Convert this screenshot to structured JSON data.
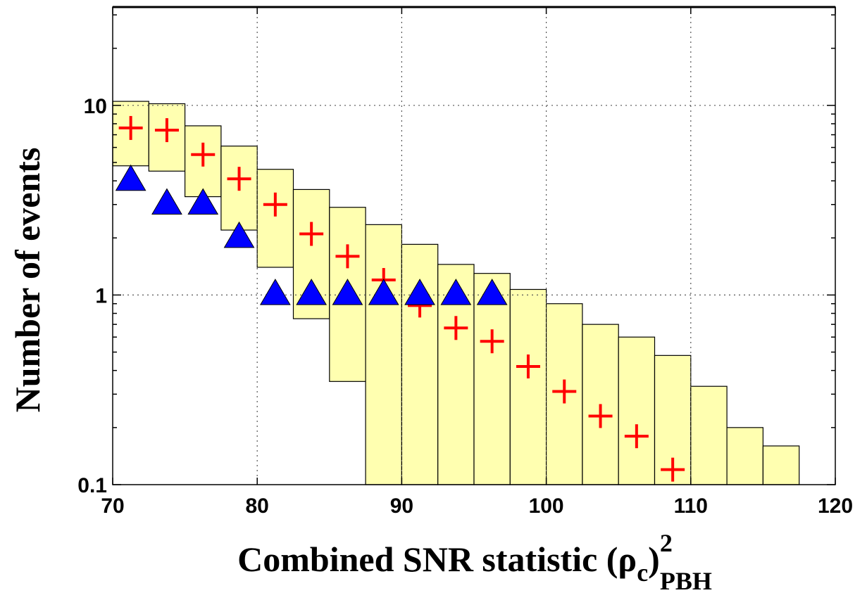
{
  "chart_data": {
    "type": "bar",
    "scale_y": "log",
    "xlim": [
      70,
      120
    ],
    "ylim": [
      0.1,
      33
    ],
    "grid": true,
    "legend": "none",
    "xlabel": {
      "text": "Combined SNR statistic (ρ",
      "sub_c": "c",
      "close_paren": ")",
      "sup": "2",
      "sub": "PBH"
    },
    "ylabel": "Number of events",
    "x_ticks": [
      70,
      80,
      90,
      100,
      110,
      120
    ],
    "x_tick_labels": [
      "70",
      "80",
      "90",
      "100",
      "110",
      "120"
    ],
    "y_ticks": [
      0.1,
      1,
      10
    ],
    "y_tick_labels": [
      "0.1",
      "1",
      "10"
    ],
    "colors": {
      "band_fill": "#ffffb0",
      "band_edge": "#000000",
      "background_marker": "#ff0000",
      "foreground_marker": "#0000ff",
      "grid": "#555555"
    },
    "bin_edges": [
      70.0,
      72.5,
      75.0,
      77.5,
      80.0,
      82.5,
      85.0,
      87.5,
      90.0,
      92.5,
      95.0,
      97.5,
      100.0,
      102.5,
      105.0,
      107.5,
      110.0,
      112.5,
      115.0,
      117.5
    ],
    "series": [
      {
        "kind": "band",
        "low": [
          4.8,
          4.5,
          3.3,
          2.2,
          1.4,
          0.75,
          0.35,
          0.1,
          0.1,
          0.1,
          0.1,
          0.1,
          0.1,
          0.1,
          0.1,
          0.1,
          0.1,
          0.1,
          0.1
        ],
        "high": [
          10.5,
          10.2,
          7.8,
          6.1,
          4.6,
          3.6,
          2.9,
          2.35,
          1.85,
          1.45,
          1.3,
          1.07,
          0.9,
          0.7,
          0.6,
          0.48,
          0.33,
          0.2,
          0.16
        ]
      },
      {
        "kind": "marker-plus",
        "x": [
          71.25,
          73.75,
          76.25,
          78.75,
          81.25,
          83.75,
          86.25,
          88.75,
          91.25,
          93.75,
          96.25,
          98.75,
          101.25,
          103.75,
          106.25,
          108.75
        ],
        "values": [
          7.6,
          7.4,
          5.5,
          4.1,
          3.0,
          2.1,
          1.6,
          1.2,
          0.88,
          0.67,
          0.57,
          0.42,
          0.31,
          0.23,
          0.18,
          0.12
        ]
      },
      {
        "kind": "marker-triangle",
        "x": [
          71.25,
          73.75,
          76.25,
          78.75,
          81.25,
          83.75,
          86.25,
          88.75,
          91.25,
          93.75,
          96.25
        ],
        "values": [
          4.0,
          3.0,
          3.0,
          2.0,
          1.0,
          1.0,
          1.0,
          1.0,
          1.0,
          1.0,
          1.0
        ]
      }
    ]
  }
}
